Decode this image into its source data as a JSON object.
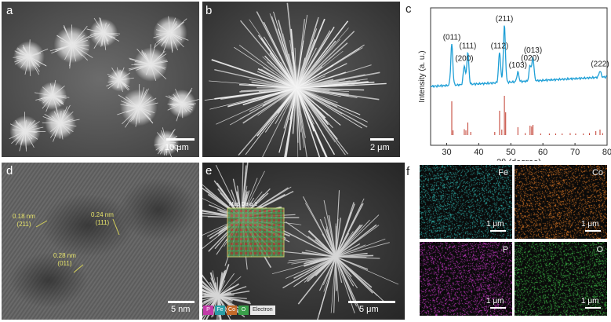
{
  "panels": {
    "a": {
      "label": "a",
      "scale_bar": "10 μm"
    },
    "b": {
      "label": "b",
      "scale_bar": "2 μm"
    },
    "c": {
      "label": "c"
    },
    "d": {
      "label": "d",
      "scale_bar": "5 nm",
      "annotations": [
        {
          "spacing": "0.18 nm",
          "plane": "(211)"
        },
        {
          "spacing": "0.24 nm",
          "plane": "(111)"
        },
        {
          "spacing": "0.28 nm",
          "plane": "(011)"
        }
      ]
    },
    "e": {
      "label": "e",
      "scale_bar": "5 μm",
      "map_title": "Map Data 1",
      "legend": [
        "P",
        "Fe",
        "Co",
        "O",
        "Electron"
      ]
    },
    "f": {
      "label": "f",
      "maps": [
        {
          "element": "Fe",
          "scale_bar": "1 μm",
          "color": "#2fb6b0"
        },
        {
          "element": "Co",
          "scale_bar": "1 μm",
          "color": "#e07a26"
        },
        {
          "element": "P",
          "scale_bar": "1 μm",
          "color": "#d23ad2"
        },
        {
          "element": "O",
          "scale_bar": "1 μm",
          "color": "#3fc24a"
        }
      ]
    }
  },
  "chart_data": {
    "type": "line",
    "xlabel": "2θ (degree)",
    "ylabel": "Intensity (a. u.)",
    "xlim": [
      25,
      80
    ],
    "xticks": [
      30,
      40,
      50,
      60,
      70,
      80
    ],
    "colors": {
      "pattern": "#1e9fd6",
      "reference": "#c0392b"
    },
    "peaks": [
      {
        "label": "(011)",
        "x": 31.6
      },
      {
        "label": "(200)",
        "x": 35.5
      },
      {
        "label": "(111)",
        "x": 36.6
      },
      {
        "label": "(112)",
        "x": 46.5
      },
      {
        "label": "(211)",
        "x": 48.0
      },
      {
        "label": "(103)",
        "x": 52.2
      },
      {
        "label": "(020)",
        "x": 56.0
      },
      {
        "label": "(013)",
        "x": 56.9
      },
      {
        "label": "(222)",
        "x": 77.8
      }
    ],
    "reference_lines": [
      {
        "x": 31.6,
        "h": 0.86
      },
      {
        "x": 32.0,
        "h": 0.12
      },
      {
        "x": 35.5,
        "h": 0.15
      },
      {
        "x": 36.0,
        "h": 0.12
      },
      {
        "x": 36.6,
        "h": 0.32
      },
      {
        "x": 37.5,
        "h": 0.08
      },
      {
        "x": 45.0,
        "h": 0.08
      },
      {
        "x": 46.5,
        "h": 0.62
      },
      {
        "x": 47.2,
        "h": 0.14
      },
      {
        "x": 48.0,
        "h": 1.0
      },
      {
        "x": 48.4,
        "h": 0.58
      },
      {
        "x": 52.2,
        "h": 0.2
      },
      {
        "x": 54.5,
        "h": 0.05
      },
      {
        "x": 56.0,
        "h": 0.24
      },
      {
        "x": 56.5,
        "h": 0.22
      },
      {
        "x": 56.9,
        "h": 0.26
      },
      {
        "x": 59.3,
        "h": 0.04
      },
      {
        "x": 62.0,
        "h": 0.04
      },
      {
        "x": 64.0,
        "h": 0.04
      },
      {
        "x": 66.0,
        "h": 0.04
      },
      {
        "x": 68.5,
        "h": 0.05
      },
      {
        "x": 70.2,
        "h": 0.04
      },
      {
        "x": 72.6,
        "h": 0.04
      },
      {
        "x": 74.5,
        "h": 0.05
      },
      {
        "x": 76.5,
        "h": 0.1
      },
      {
        "x": 77.8,
        "h": 0.14
      },
      {
        "x": 78.6,
        "h": 0.05
      }
    ]
  }
}
